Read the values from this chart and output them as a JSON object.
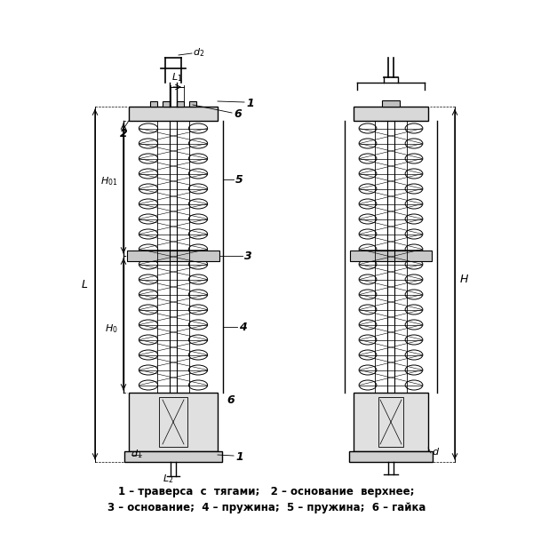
{
  "bg_color": "#ffffff",
  "line_color": "#000000",
  "fig_width": 6.0,
  "fig_height": 6.0,
  "caption_line1": "1 – траверса  с  тягами;   2 – основание  верхнее;",
  "caption_line2": "3 – основание;  4 – пружина;  5 – пружина;  6 – гайка"
}
